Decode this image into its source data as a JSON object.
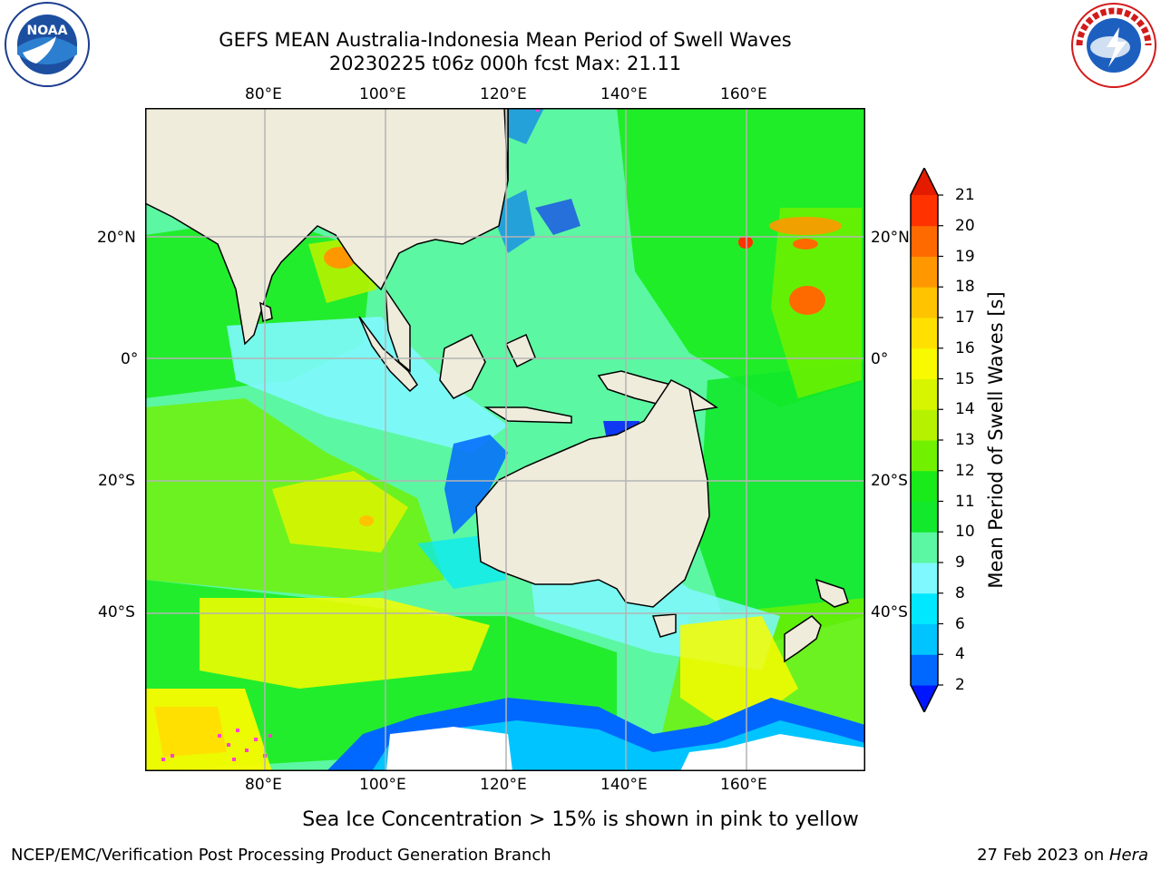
{
  "header": {
    "title_line1": "GEFS MEAN Australia-Indonesia Mean Period of Swell Waves",
    "title_line2": "20230225 t06z 000h fcst   Max: 21.11"
  },
  "logos": {
    "left": "noaa-logo",
    "right": "nws-logo"
  },
  "map": {
    "lon_labels": [
      "80°E",
      "100°E",
      "120°E",
      "140°E",
      "160°E"
    ],
    "lat_labels": [
      "20°N",
      "0°",
      "20°S",
      "40°S"
    ],
    "colors": {
      "land": "#efecdc",
      "grid": "#b4b4b4",
      "sea_ice_note": "pink to yellow"
    }
  },
  "colorbar": {
    "label": "Mean Period of Swell Waves [s]",
    "ticks": [
      "2",
      "4",
      "6",
      "8",
      "9",
      "10",
      "11",
      "12",
      "13",
      "14",
      "15",
      "16",
      "17",
      "18",
      "19",
      "20",
      "21"
    ],
    "colors": [
      "#0016ff",
      "#0068ff",
      "#00c4ff",
      "#00e8ff",
      "#7ff8ff",
      "#5cf7a2",
      "#12e82c",
      "#18eb19",
      "#71f000",
      "#b6f200",
      "#d8f500",
      "#f8fb00",
      "#ffe000",
      "#ffc300",
      "#ff9800",
      "#ff6a00",
      "#ff3200",
      "#e51b00"
    ]
  },
  "footer": {
    "note": "Sea Ice Concentration > 15% is shown in pink to yellow",
    "left": "NCEP/EMC/Verification Post Processing Product Generation Branch",
    "right_date": "27 Feb 2023 on ",
    "right_host": "Hera"
  }
}
